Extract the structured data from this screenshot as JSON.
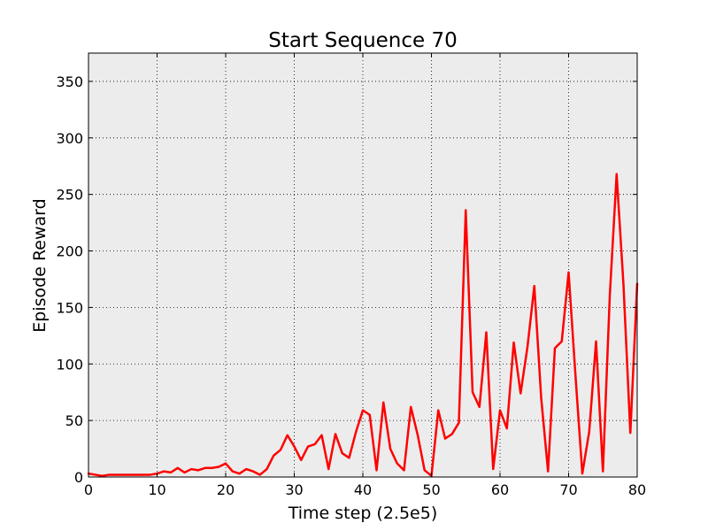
{
  "chart_data": {
    "type": "line",
    "title": "Start Sequence 70",
    "xlabel": "Time step (2.5e5)",
    "ylabel": "Episode Reward",
    "xlim": [
      0,
      80
    ],
    "ylim": [
      0,
      375
    ],
    "xticks": [
      0,
      10,
      20,
      30,
      40,
      50,
      60,
      70,
      80
    ],
    "yticks": [
      0,
      50,
      100,
      150,
      200,
      250,
      300,
      350
    ],
    "grid": true,
    "background_color": "#ececec",
    "series": [
      {
        "color": "#ff0000",
        "x": [
          0,
          1,
          2,
          3,
          4,
          5,
          6,
          7,
          8,
          9,
          10,
          11,
          12,
          13,
          14,
          15,
          16,
          17,
          18,
          19,
          20,
          21,
          22,
          23,
          24,
          25,
          26,
          27,
          28,
          29,
          30,
          31,
          32,
          33,
          34,
          35,
          36,
          37,
          38,
          39,
          40,
          41,
          42,
          43,
          44,
          45,
          46,
          47,
          48,
          49,
          50,
          51,
          52,
          53,
          54,
          55,
          56,
          57,
          58,
          59,
          60,
          61,
          62,
          63,
          64,
          65,
          66,
          67,
          68,
          69,
          70,
          71,
          72,
          73,
          74,
          75,
          76,
          77,
          78,
          79,
          80
        ],
        "values": [
          3,
          2,
          1,
          2,
          2,
          2,
          2,
          2,
          2,
          2,
          3,
          5,
          4,
          8,
          4,
          7,
          6,
          8,
          8,
          9,
          12,
          5,
          3,
          7,
          5,
          2,
          7,
          19,
          24,
          37,
          27,
          15,
          27,
          29,
          37,
          7,
          38,
          21,
          17,
          40,
          59,
          55,
          6,
          66,
          25,
          12,
          6,
          62,
          37,
          6,
          1,
          59,
          34,
          38,
          48,
          236,
          75,
          62,
          128,
          7,
          59,
          43,
          119,
          74,
          115,
          169,
          70,
          5,
          114,
          120,
          181,
          90,
          3,
          40,
          120,
          5,
          160,
          268,
          170,
          39,
          171
        ]
      }
    ]
  }
}
